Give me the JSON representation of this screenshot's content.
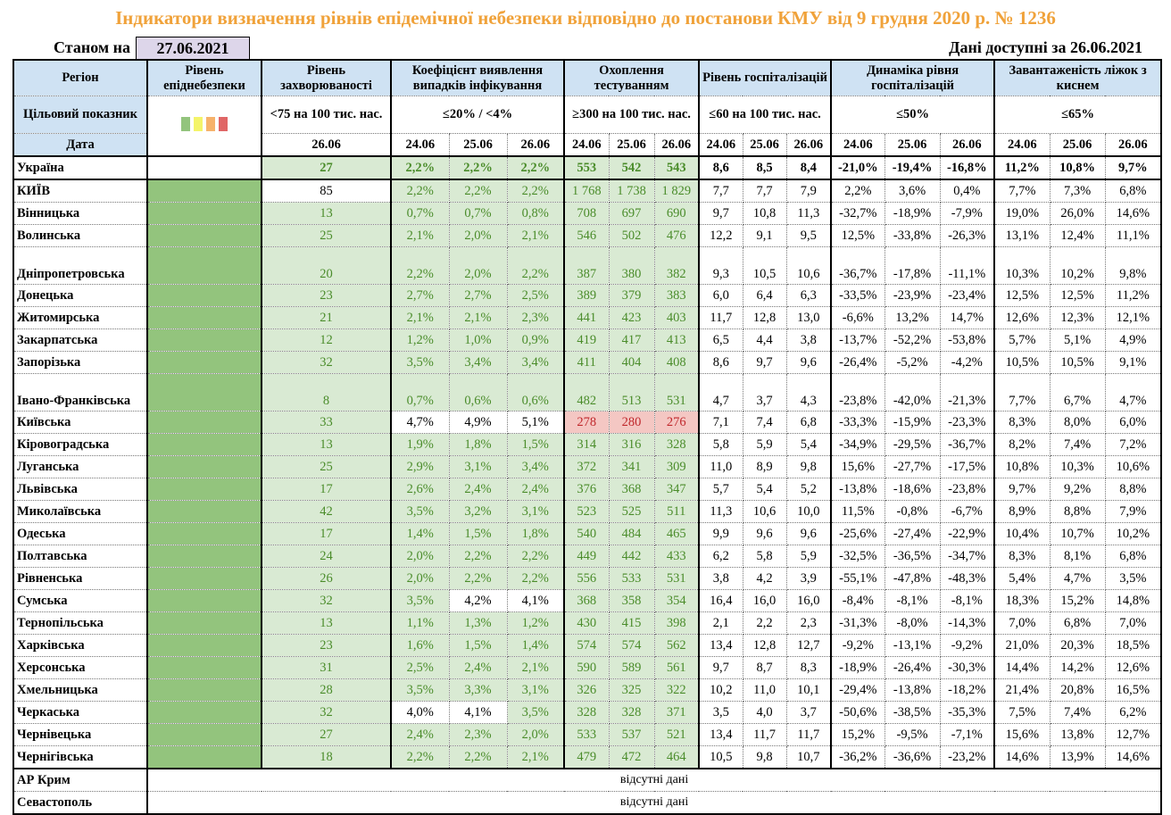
{
  "title": "Індикатори визначення рівнів епідемічної небезпеки відповідно до постанови КМУ від 9 грудня 2020 р. № 1236",
  "as_of_label": "Станом на",
  "as_of_date": "27.06.2021",
  "available_label": "Дані доступні за  26.06.2021",
  "headers": {
    "region": "Регіон",
    "level": "Рівень епіднебезпеки",
    "incidence": "Рівень захворюваності",
    "coef": "Коефіцієнт виявлення випадків інфікування",
    "testing": "Охоплення тестуванням",
    "hosp": "Рівень госпіталізацій",
    "dynamics": "Динаміка рівня госпіталізацій",
    "beds": "Завантаженість ліжок з киснем"
  },
  "targets": {
    "label": "Цільовий показник",
    "incidence": "<75 на 100 тис. нас.",
    "coef": "≤20% / <4%",
    "testing": "≥300 на 100 тис. нас.",
    "hosp": "≤60 на 100 тис. нас.",
    "dynamics": "≤50%",
    "beds": "≤65%"
  },
  "level_colors": [
    "#93c47d",
    "#f4f46a",
    "#f6b26b",
    "#e06666"
  ],
  "date_label": "Дата",
  "dates": {
    "incidence": "26.06",
    "three": [
      "24.06",
      "25.06",
      "26.06"
    ]
  },
  "cell_colors": {
    "ok_bg": "#d9ead3",
    "ok_text": "#4a8c2a",
    "bad_bg": "#f4c7c3",
    "bad_text": "#c0282c"
  },
  "regions": [
    {
      "name": "Україна",
      "inc": "27",
      "coef": [
        "2,2%",
        "2,2%",
        "2,2%"
      ],
      "test": [
        "553",
        "542",
        "543"
      ],
      "hosp": [
        "8,6",
        "8,5",
        "8,4"
      ],
      "dyn": [
        "-21,0%",
        "-19,4%",
        "-16,8%"
      ],
      "beds": [
        "11,2%",
        "10,8%",
        "9,7%"
      ]
    },
    {
      "name": "КИЇВ",
      "inc": "85",
      "coef": [
        "2,2%",
        "2,2%",
        "2,2%"
      ],
      "test": [
        "1 768",
        "1 738",
        "1 829"
      ],
      "hosp": [
        "7,7",
        "7,7",
        "7,9"
      ],
      "dyn": [
        "2,2%",
        "3,6%",
        "0,4%"
      ],
      "beds": [
        "7,7%",
        "7,3%",
        "6,8%"
      ]
    },
    {
      "name": "Вінницька",
      "inc": "13",
      "coef": [
        "0,7%",
        "0,7%",
        "0,8%"
      ],
      "test": [
        "708",
        "697",
        "690"
      ],
      "hosp": [
        "9,7",
        "10,8",
        "11,3"
      ],
      "dyn": [
        "-32,7%",
        "-18,9%",
        "-7,9%"
      ],
      "beds": [
        "19,0%",
        "26,0%",
        "14,6%"
      ]
    },
    {
      "name": "Волинська",
      "inc": "25",
      "coef": [
        "2,1%",
        "2,0%",
        "2,1%"
      ],
      "test": [
        "546",
        "502",
        "476"
      ],
      "hosp": [
        "12,2",
        "9,1",
        "9,5"
      ],
      "dyn": [
        "12,5%",
        "-33,8%",
        "-26,3%"
      ],
      "beds": [
        "13,1%",
        "12,4%",
        "11,1%"
      ]
    },
    {
      "name": "Дніпропетровська",
      "inc": "20",
      "coef": [
        "2,2%",
        "2,0%",
        "2,2%"
      ],
      "test": [
        "387",
        "380",
        "382"
      ],
      "hosp": [
        "9,3",
        "10,5",
        "10,6"
      ],
      "dyn": [
        "-36,7%",
        "-17,8%",
        "-11,1%"
      ],
      "beds": [
        "10,3%",
        "10,2%",
        "9,8%"
      ]
    },
    {
      "name": "Донецька",
      "inc": "23",
      "coef": [
        "2,7%",
        "2,7%",
        "2,5%"
      ],
      "test": [
        "389",
        "379",
        "383"
      ],
      "hosp": [
        "6,0",
        "6,4",
        "6,3"
      ],
      "dyn": [
        "-33,5%",
        "-23,9%",
        "-23,4%"
      ],
      "beds": [
        "12,5%",
        "12,5%",
        "11,2%"
      ]
    },
    {
      "name": "Житомирська",
      "inc": "21",
      "coef": [
        "2,1%",
        "2,1%",
        "2,3%"
      ],
      "test": [
        "441",
        "423",
        "403"
      ],
      "hosp": [
        "11,7",
        "12,8",
        "13,0"
      ],
      "dyn": [
        "-6,6%",
        "13,2%",
        "14,7%"
      ],
      "beds": [
        "12,6%",
        "12,3%",
        "12,1%"
      ]
    },
    {
      "name": "Закарпатська",
      "inc": "12",
      "coef": [
        "1,2%",
        "1,0%",
        "0,9%"
      ],
      "test": [
        "419",
        "417",
        "413"
      ],
      "hosp": [
        "6,5",
        "4,4",
        "3,8"
      ],
      "dyn": [
        "-13,7%",
        "-52,2%",
        "-53,8%"
      ],
      "beds": [
        "5,7%",
        "5,1%",
        "4,9%"
      ]
    },
    {
      "name": "Запорізька",
      "inc": "32",
      "coef": [
        "3,5%",
        "3,4%",
        "3,4%"
      ],
      "test": [
        "411",
        "404",
        "408"
      ],
      "hosp": [
        "8,6",
        "9,7",
        "9,6"
      ],
      "dyn": [
        "-26,4%",
        "-5,2%",
        "-4,2%"
      ],
      "beds": [
        "10,5%",
        "10,5%",
        "9,1%"
      ]
    },
    {
      "name": "Івано-Франківська",
      "inc": "8",
      "coef": [
        "0,7%",
        "0,6%",
        "0,6%"
      ],
      "test": [
        "482",
        "513",
        "531"
      ],
      "hosp": [
        "4,7",
        "3,7",
        "4,3"
      ],
      "dyn": [
        "-23,8%",
        "-42,0%",
        "-21,3%"
      ],
      "beds": [
        "7,7%",
        "6,7%",
        "4,7%"
      ]
    },
    {
      "name": "Київська",
      "inc": "33",
      "coef": [
        "4,7%",
        "4,9%",
        "5,1%"
      ],
      "test": [
        "278",
        "280",
        "276"
      ],
      "hosp": [
        "7,1",
        "7,4",
        "6,8"
      ],
      "dyn": [
        "-33,3%",
        "-15,9%",
        "-23,3%"
      ],
      "beds": [
        "8,3%",
        "8,0%",
        "6,0%"
      ]
    },
    {
      "name": "Кіровоградська",
      "inc": "13",
      "coef": [
        "1,9%",
        "1,8%",
        "1,5%"
      ],
      "test": [
        "314",
        "316",
        "328"
      ],
      "hosp": [
        "5,8",
        "5,9",
        "5,4"
      ],
      "dyn": [
        "-34,9%",
        "-29,5%",
        "-36,7%"
      ],
      "beds": [
        "8,2%",
        "7,4%",
        "7,2%"
      ]
    },
    {
      "name": "Луганська",
      "inc": "25",
      "coef": [
        "2,9%",
        "3,1%",
        "3,4%"
      ],
      "test": [
        "372",
        "341",
        "309"
      ],
      "hosp": [
        "11,0",
        "8,9",
        "9,8"
      ],
      "dyn": [
        "15,6%",
        "-27,7%",
        "-17,5%"
      ],
      "beds": [
        "10,8%",
        "10,3%",
        "10,6%"
      ]
    },
    {
      "name": "Львівська",
      "inc": "17",
      "coef": [
        "2,6%",
        "2,4%",
        "2,4%"
      ],
      "test": [
        "376",
        "368",
        "347"
      ],
      "hosp": [
        "5,7",
        "5,4",
        "5,2"
      ],
      "dyn": [
        "-13,8%",
        "-18,6%",
        "-23,8%"
      ],
      "beds": [
        "9,7%",
        "9,2%",
        "8,8%"
      ]
    },
    {
      "name": "Миколаївська",
      "inc": "42",
      "coef": [
        "3,5%",
        "3,2%",
        "3,1%"
      ],
      "test": [
        "523",
        "525",
        "511"
      ],
      "hosp": [
        "11,3",
        "10,6",
        "10,0"
      ],
      "dyn": [
        "11,5%",
        "-0,8%",
        "-6,7%"
      ],
      "beds": [
        "8,9%",
        "8,8%",
        "7,9%"
      ]
    },
    {
      "name": "Одеська",
      "inc": "17",
      "coef": [
        "1,4%",
        "1,5%",
        "1,8%"
      ],
      "test": [
        "540",
        "484",
        "465"
      ],
      "hosp": [
        "9,9",
        "9,6",
        "9,6"
      ],
      "dyn": [
        "-25,6%",
        "-27,4%",
        "-22,9%"
      ],
      "beds": [
        "10,4%",
        "10,7%",
        "10,2%"
      ]
    },
    {
      "name": "Полтавська",
      "inc": "24",
      "coef": [
        "2,0%",
        "2,2%",
        "2,2%"
      ],
      "test": [
        "449",
        "442",
        "433"
      ],
      "hosp": [
        "6,2",
        "5,8",
        "5,9"
      ],
      "dyn": [
        "-32,5%",
        "-36,5%",
        "-34,7%"
      ],
      "beds": [
        "8,3%",
        "8,1%",
        "6,8%"
      ]
    },
    {
      "name": "Рівненська",
      "inc": "26",
      "coef": [
        "2,0%",
        "2,2%",
        "2,2%"
      ],
      "test": [
        "556",
        "533",
        "531"
      ],
      "hosp": [
        "3,8",
        "4,2",
        "3,9"
      ],
      "dyn": [
        "-55,1%",
        "-47,8%",
        "-48,3%"
      ],
      "beds": [
        "5,4%",
        "4,7%",
        "3,5%"
      ]
    },
    {
      "name": "Сумська",
      "inc": "32",
      "coef": [
        "3,5%",
        "4,2%",
        "4,1%"
      ],
      "test": [
        "368",
        "358",
        "354"
      ],
      "hosp": [
        "16,4",
        "16,0",
        "16,0"
      ],
      "dyn": [
        "-8,4%",
        "-8,1%",
        "-8,1%"
      ],
      "beds": [
        "18,3%",
        "15,2%",
        "14,8%"
      ]
    },
    {
      "name": "Тернопільська",
      "inc": "13",
      "coef": [
        "1,1%",
        "1,3%",
        "1,2%"
      ],
      "test": [
        "430",
        "415",
        "398"
      ],
      "hosp": [
        "2,1",
        "2,2",
        "2,3"
      ],
      "dyn": [
        "-31,3%",
        "-8,0%",
        "-14,3%"
      ],
      "beds": [
        "7,0%",
        "6,8%",
        "7,0%"
      ]
    },
    {
      "name": "Харківська",
      "inc": "23",
      "coef": [
        "1,6%",
        "1,5%",
        "1,4%"
      ],
      "test": [
        "574",
        "574",
        "562"
      ],
      "hosp": [
        "13,4",
        "12,8",
        "12,7"
      ],
      "dyn": [
        "-9,2%",
        "-13,1%",
        "-9,2%"
      ],
      "beds": [
        "21,0%",
        "20,3%",
        "18,5%"
      ]
    },
    {
      "name": "Херсонська",
      "inc": "31",
      "coef": [
        "2,5%",
        "2,4%",
        "2,1%"
      ],
      "test": [
        "590",
        "589",
        "561"
      ],
      "hosp": [
        "9,7",
        "8,7",
        "8,3"
      ],
      "dyn": [
        "-18,9%",
        "-26,4%",
        "-30,3%"
      ],
      "beds": [
        "14,4%",
        "14,2%",
        "12,6%"
      ]
    },
    {
      "name": "Хмельницька",
      "inc": "28",
      "coef": [
        "3,5%",
        "3,3%",
        "3,1%"
      ],
      "test": [
        "326",
        "325",
        "322"
      ],
      "hosp": [
        "10,2",
        "11,0",
        "10,1"
      ],
      "dyn": [
        "-29,4%",
        "-13,8%",
        "-18,2%"
      ],
      "beds": [
        "21,4%",
        "20,8%",
        "16,5%"
      ]
    },
    {
      "name": "Черкаська",
      "inc": "32",
      "coef": [
        "4,0%",
        "4,1%",
        "3,5%"
      ],
      "test": [
        "328",
        "328",
        "371"
      ],
      "hosp": [
        "3,5",
        "4,0",
        "3,7"
      ],
      "dyn": [
        "-50,6%",
        "-38,5%",
        "-35,3%"
      ],
      "beds": [
        "7,5%",
        "7,4%",
        "6,2%"
      ]
    },
    {
      "name": "Чернівецька",
      "inc": "27",
      "coef": [
        "2,4%",
        "2,3%",
        "2,0%"
      ],
      "test": [
        "533",
        "537",
        "521"
      ],
      "hosp": [
        "13,4",
        "11,7",
        "11,7"
      ],
      "dyn": [
        "15,2%",
        "-9,5%",
        "-7,1%"
      ],
      "beds": [
        "15,6%",
        "13,8%",
        "12,7%"
      ]
    },
    {
      "name": "Чернігівська",
      "inc": "18",
      "coef": [
        "2,2%",
        "2,2%",
        "2,1%"
      ],
      "test": [
        "479",
        "472",
        "464"
      ],
      "hosp": [
        "10,5",
        "9,8",
        "10,7"
      ],
      "dyn": [
        "-36,2%",
        "-36,6%",
        "-23,2%"
      ],
      "beds": [
        "14,6%",
        "13,9%",
        "14,6%"
      ]
    }
  ],
  "missing": [
    {
      "name": "АР Крим",
      "note": "відсутні дані"
    },
    {
      "name": "Севастополь",
      "note": "відсутні дані"
    }
  ]
}
